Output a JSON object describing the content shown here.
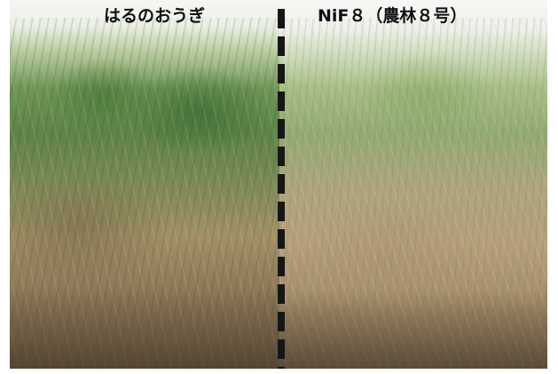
{
  "labels": {
    "left": "はるのおうぎ",
    "right": "NiF８（農林８号）"
  },
  "colors": {
    "divider": "#161616",
    "label_text": "#111111"
  }
}
